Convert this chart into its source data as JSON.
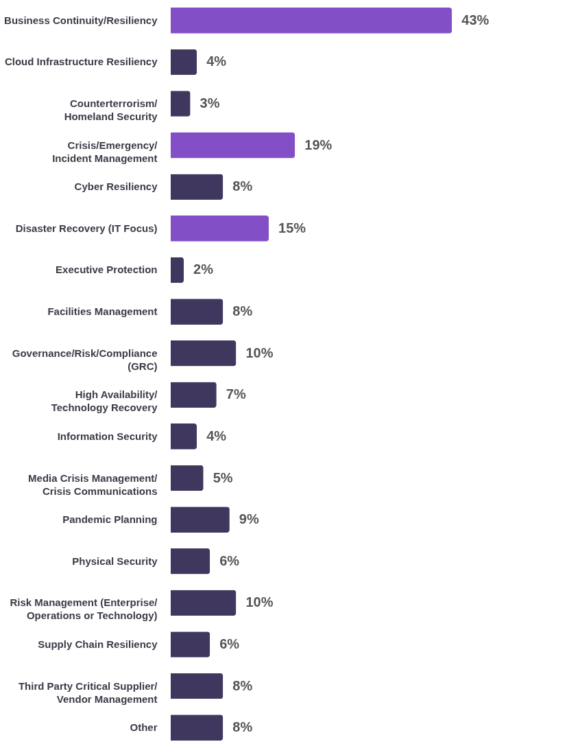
{
  "chart_data": {
    "type": "bar",
    "orientation": "horizontal",
    "categories": [
      "Business Continuity/Resiliency",
      "Cloud Infrastructure Resiliency",
      "Counterterrorism/\nHomeland Security",
      "Crisis/Emergency/\nIncident Management",
      "Cyber Resiliency",
      "Disaster Recovery (IT Focus)",
      "Executive Protection",
      "Facilities Management",
      "Governance/Risk/Compliance\n(GRC)",
      "High Availability/\nTechnology Recovery",
      "Information Security",
      "Media Crisis Management/\nCrisis Communications",
      "Pandemic Planning",
      "Physical Security",
      "Risk Management (Enterprise/\nOperations or Technology)",
      "Supply Chain Resiliency",
      "Third Party Critical Supplier/\nVendor Management",
      "Other"
    ],
    "values": [
      43,
      4,
      3,
      19,
      8,
      15,
      2,
      8,
      10,
      7,
      4,
      5,
      9,
      6,
      10,
      6,
      8,
      8
    ],
    "value_labels": [
      "43%",
      "4%",
      "3%",
      "19%",
      "8%",
      "15%",
      "2%",
      "8%",
      "10%",
      "7%",
      "4%",
      "5%",
      "9%",
      "6%",
      "10%",
      "6%",
      "8%",
      "8%"
    ],
    "colors": [
      "#824fc6",
      "#3f375e",
      "#3f375e",
      "#824fc6",
      "#3f375e",
      "#824fc6",
      "#3f375e",
      "#3f375e",
      "#3f375e",
      "#3f375e",
      "#3f375e",
      "#3f375e",
      "#3f375e",
      "#3f375e",
      "#3f375e",
      "#3f375e",
      "#3f375e",
      "#3f375e"
    ]
  }
}
